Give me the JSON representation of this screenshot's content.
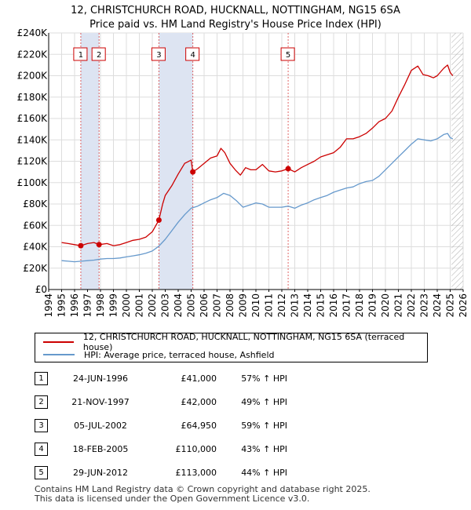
{
  "title_line1": "12, CHRISTCHURCH ROAD, HUCKNALL, NOTTINGHAM, NG15 6SA",
  "title_line2": "Price paid vs. HM Land Registry's House Price Index (HPI)",
  "colors": {
    "price_line": "#cc0000",
    "hpi_line": "#6699cc",
    "sale_shade": "#dde4f2",
    "future_hatch": "#aaaaaa",
    "grid": "#dddddd",
    "marker": "#cc0000",
    "box_border": "#cc0000"
  },
  "chart_data": {
    "type": "line",
    "title": "Price paid vs. HM Land Registry's House Price Index (HPI)",
    "xlim": [
      1994,
      2026
    ],
    "ylim": [
      0,
      240000
    ],
    "xticks": [
      1994,
      1995,
      1996,
      1997,
      1998,
      1999,
      2000,
      2001,
      2002,
      2003,
      2004,
      2005,
      2006,
      2007,
      2008,
      2009,
      2010,
      2011,
      2012,
      2013,
      2014,
      2015,
      2016,
      2017,
      2018,
      2019,
      2020,
      2021,
      2022,
      2023,
      2024,
      2025,
      2026
    ],
    "yticks": [
      {
        "value": 0,
        "label": "£0"
      },
      {
        "value": 20000,
        "label": "£20K"
      },
      {
        "value": 40000,
        "label": "£40K"
      },
      {
        "value": 60000,
        "label": "£60K"
      },
      {
        "value": 80000,
        "label": "£80K"
      },
      {
        "value": 100000,
        "label": "£100K"
      },
      {
        "value": 120000,
        "label": "£120K"
      },
      {
        "value": 140000,
        "label": "£140K"
      },
      {
        "value": 160000,
        "label": "£160K"
      },
      {
        "value": 180000,
        "label": "£180K"
      },
      {
        "value": 200000,
        "label": "£200K"
      },
      {
        "value": 220000,
        "label": "£220K"
      },
      {
        "value": 240000,
        "label": "£240K"
      }
    ],
    "future_from": 2025.1,
    "series": [
      {
        "name": "12, CHRISTCHURCH ROAD, HUCKNALL, NOTTINGHAM, NG15 6SA (terraced house)",
        "x": [
          1995.0,
          1995.5,
          1996.0,
          1996.48,
          1997.0,
          1997.5,
          1997.89,
          1998.5,
          1999.0,
          1999.5,
          2000.0,
          2000.5,
          2001.0,
          2001.5,
          2002.0,
          2002.51,
          2002.8,
          2003.0,
          2003.5,
          2004.0,
          2004.5,
          2005.0,
          2005.13,
          2005.5,
          2006.0,
          2006.5,
          2007.0,
          2007.3,
          2007.6,
          2008.0,
          2008.4,
          2008.8,
          2009.2,
          2009.6,
          2010.0,
          2010.5,
          2011.0,
          2011.5,
          2012.0,
          2012.49,
          2013.0,
          2013.5,
          2014.0,
          2014.5,
          2015.0,
          2015.5,
          2016.0,
          2016.5,
          2017.0,
          2017.5,
          2018.0,
          2018.5,
          2019.0,
          2019.5,
          2020.0,
          2020.5,
          2021.0,
          2021.5,
          2022.0,
          2022.5,
          2022.9,
          2023.3,
          2023.7,
          2024.0,
          2024.5,
          2024.8,
          2025.0,
          2025.2
        ],
        "y": [
          44000,
          43000,
          42000,
          41000,
          43000,
          44000,
          42000,
          43000,
          41000,
          42000,
          44000,
          46000,
          47000,
          49000,
          54000,
          64950,
          80000,
          88000,
          97000,
          108000,
          118000,
          121000,
          110000,
          113000,
          118000,
          123000,
          125000,
          132000,
          128000,
          118000,
          112000,
          107000,
          114000,
          112000,
          112000,
          117000,
          111000,
          110000,
          111000,
          113000,
          110000,
          114000,
          117000,
          120000,
          124000,
          126000,
          128000,
          133000,
          141000,
          141000,
          143000,
          146000,
          151000,
          157000,
          160000,
          167000,
          180000,
          192000,
          205000,
          209000,
          201000,
          200000,
          198000,
          200000,
          207000,
          210000,
          203000,
          200000
        ]
      },
      {
        "name": "HPI: Average price, terraced house, Ashfield",
        "x": [
          1995.0,
          1995.5,
          1996.0,
          1996.5,
          1997.0,
          1997.5,
          1998.0,
          1998.5,
          1999.0,
          1999.5,
          2000.0,
          2000.5,
          2001.0,
          2001.5,
          2002.0,
          2002.5,
          2003.0,
          2003.5,
          2004.0,
          2004.5,
          2005.0,
          2005.5,
          2006.0,
          2006.5,
          2007.0,
          2007.5,
          2008.0,
          2008.5,
          2009.0,
          2009.5,
          2010.0,
          2010.5,
          2011.0,
          2011.5,
          2012.0,
          2012.5,
          2013.0,
          2013.5,
          2014.0,
          2014.5,
          2015.0,
          2015.5,
          2016.0,
          2016.5,
          2017.0,
          2017.5,
          2018.0,
          2018.5,
          2019.0,
          2019.5,
          2020.0,
          2020.5,
          2021.0,
          2021.5,
          2022.0,
          2022.5,
          2023.0,
          2023.5,
          2024.0,
          2024.5,
          2024.8,
          2025.0,
          2025.2
        ],
        "y": [
          27000,
          26500,
          26000,
          26500,
          27000,
          27500,
          28500,
          29000,
          29000,
          29500,
          30500,
          31500,
          32500,
          34000,
          36000,
          40500,
          47000,
          55000,
          63000,
          70000,
          76000,
          78000,
          81000,
          84000,
          86000,
          90000,
          88000,
          83000,
          77000,
          79000,
          81000,
          80000,
          77000,
          77000,
          77000,
          78000,
          76000,
          79000,
          81000,
          84000,
          86000,
          88000,
          91000,
          93000,
          95000,
          96000,
          99000,
          101000,
          102000,
          106000,
          112000,
          118000,
          124000,
          130000,
          136000,
          141000,
          140000,
          139000,
          141000,
          145000,
          146000,
          142000,
          141000
        ]
      }
    ],
    "sales": [
      {
        "num": "1",
        "x": 1996.48,
        "y": 41000
      },
      {
        "num": "2",
        "x": 1997.89,
        "y": 42000
      },
      {
        "num": "3",
        "x": 2002.51,
        "y": 64950
      },
      {
        "num": "4",
        "x": 2005.13,
        "y": 110000
      },
      {
        "num": "5",
        "x": 2012.49,
        "y": 113000
      }
    ],
    "shaded_ranges": [
      [
        1996.48,
        1997.89
      ],
      [
        2002.51,
        2005.13
      ]
    ]
  },
  "legend": {
    "price_label": "12, CHRISTCHURCH ROAD, HUCKNALL, NOTTINGHAM, NG15 6SA (terraced house)",
    "hpi_label": "HPI: Average price, terraced house, Ashfield"
  },
  "sales_table": [
    {
      "num": "1",
      "date": "24-JUN-1996",
      "price": "£41,000",
      "hpi": "57% ↑ HPI"
    },
    {
      "num": "2",
      "date": "21-NOV-1997",
      "price": "£42,000",
      "hpi": "49% ↑ HPI"
    },
    {
      "num": "3",
      "date": "05-JUL-2002",
      "price": "£64,950",
      "hpi": "59% ↑ HPI"
    },
    {
      "num": "4",
      "date": "18-FEB-2005",
      "price": "£110,000",
      "hpi": "43% ↑ HPI"
    },
    {
      "num": "5",
      "date": "29-JUN-2012",
      "price": "£113,000",
      "hpi": "44% ↑ HPI"
    }
  ],
  "footer": {
    "line1": "Contains HM Land Registry data © Crown copyright and database right 2025.",
    "line2": "This data is licensed under the Open Government Licence v3.0."
  }
}
